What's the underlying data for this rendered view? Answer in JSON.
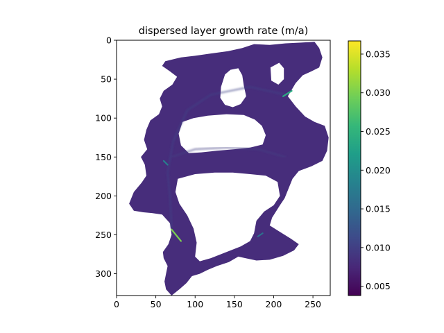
{
  "chart_data": {
    "type": "heatmap",
    "title": "dispersed layer growth rate (m/a)",
    "xlabel": "",
    "ylabel": "",
    "xlim": [
      0,
      272
    ],
    "ylim": [
      328,
      0
    ],
    "x_ticks": [
      0,
      50,
      100,
      150,
      200,
      250
    ],
    "y_ticks": [
      0,
      50,
      100,
      150,
      200,
      250,
      300
    ],
    "colormap": "viridis",
    "colorbar": {
      "min": 0.0038,
      "max": 0.0367,
      "ticks": [
        0.005,
        0.01,
        0.015,
        0.02,
        0.025,
        0.03,
        0.035
      ],
      "tick_labels": [
        "0.005",
        "0.010",
        "0.015",
        "0.020",
        "0.025",
        "0.030",
        "0.035"
      ]
    },
    "typical_value": 0.008,
    "nodata_color": "#ffffff",
    "domain_outline": [
      [
        175,
        5
      ],
      [
        195,
        6
      ],
      [
        215,
        4
      ],
      [
        235,
        3
      ],
      [
        252,
        2
      ],
      [
        258,
        10
      ],
      [
        262,
        22
      ],
      [
        258,
        35
      ],
      [
        248,
        40
      ],
      [
        237,
        45
      ],
      [
        228,
        55
      ],
      [
        218,
        72
      ],
      [
        228,
        85
      ],
      [
        240,
        98
      ],
      [
        252,
        105
      ],
      [
        265,
        110
      ],
      [
        270,
        125
      ],
      [
        268,
        142
      ],
      [
        262,
        155
      ],
      [
        248,
        162
      ],
      [
        232,
        168
      ],
      [
        224,
        178
      ],
      [
        220,
        188
      ],
      [
        214,
        203
      ],
      [
        208,
        212
      ],
      [
        203,
        220
      ],
      [
        198,
        228
      ],
      [
        195,
        238
      ],
      [
        206,
        245
      ],
      [
        222,
        255
      ],
      [
        232,
        262
      ],
      [
        226,
        270
      ],
      [
        212,
        277
      ],
      [
        195,
        282
      ],
      [
        178,
        283
      ],
      [
        164,
        280
      ],
      [
        155,
        278
      ],
      [
        143,
        285
      ],
      [
        128,
        290
      ],
      [
        116,
        295
      ],
      [
        106,
        300
      ],
      [
        96,
        303
      ],
      [
        89,
        312
      ],
      [
        80,
        320
      ],
      [
        70,
        328
      ],
      [
        63,
        320
      ],
      [
        61,
        310
      ],
      [
        63,
        300
      ],
      [
        65,
        290
      ],
      [
        60,
        280
      ],
      [
        59,
        272
      ],
      [
        66,
        262
      ],
      [
        70,
        250
      ],
      [
        68,
        235
      ],
      [
        58,
        224
      ],
      [
        45,
        222
      ],
      [
        34,
        221
      ],
      [
        22,
        219
      ],
      [
        16,
        210
      ],
      [
        22,
        195
      ],
      [
        32,
        183
      ],
      [
        38,
        174
      ],
      [
        36,
        160
      ],
      [
        31,
        150
      ],
      [
        39,
        140
      ],
      [
        35,
        128
      ],
      [
        38,
        115
      ],
      [
        43,
        103
      ],
      [
        54,
        95
      ],
      [
        58,
        85
      ],
      [
        55,
        75
      ],
      [
        60,
        65
      ],
      [
        71,
        57
      ],
      [
        77,
        47
      ],
      [
        68,
        40
      ],
      [
        58,
        33
      ],
      [
        62,
        27
      ],
      [
        82,
        22
      ],
      [
        100,
        20
      ],
      [
        120,
        17
      ],
      [
        142,
        14
      ],
      [
        160,
        10
      ]
    ],
    "holes": [
      {
        "type": "main-hole",
        "points": [
          [
            84,
            105
          ],
          [
            98,
            100
          ],
          [
            116,
            97
          ],
          [
            140,
            95
          ],
          [
            162,
            96
          ],
          [
            176,
            102
          ],
          [
            185,
            110
          ],
          [
            190,
            122
          ],
          [
            186,
            134
          ],
          [
            170,
            138
          ],
          [
            150,
            140
          ],
          [
            128,
            142
          ],
          [
            108,
            144
          ],
          [
            92,
            145
          ],
          [
            82,
            135
          ],
          [
            79,
            120
          ]
        ]
      },
      {
        "type": "lower-hole",
        "points": [
          [
            78,
            178
          ],
          [
            100,
            172
          ],
          [
            125,
            170
          ],
          [
            148,
            170
          ],
          [
            170,
            172
          ],
          [
            190,
            174
          ],
          [
            205,
            182
          ],
          [
            208,
            200
          ],
          [
            200,
            212
          ],
          [
            188,
            220
          ],
          [
            178,
            232
          ],
          [
            175,
            248
          ],
          [
            170,
            258
          ],
          [
            158,
            265
          ],
          [
            140,
            272
          ],
          [
            120,
            280
          ],
          [
            106,
            284
          ],
          [
            100,
            278
          ],
          [
            102,
            260
          ],
          [
            98,
            242
          ],
          [
            90,
            225
          ],
          [
            80,
            210
          ],
          [
            75,
            195
          ]
        ]
      },
      {
        "type": "top-bay",
        "points": [
          [
            138,
            44
          ],
          [
            145,
            38
          ],
          [
            155,
            36
          ],
          [
            160,
            45
          ],
          [
            162,
            58
          ],
          [
            165,
            72
          ],
          [
            158,
            82
          ],
          [
            148,
            86
          ],
          [
            138,
            83
          ],
          [
            132,
            74
          ],
          [
            133,
            60
          ]
        ]
      },
      {
        "type": "right-notch",
        "points": [
          [
            196,
            35
          ],
          [
            207,
            29
          ],
          [
            213,
            36
          ],
          [
            213,
            50
          ],
          [
            206,
            57
          ],
          [
            197,
            52
          ]
        ]
      }
    ],
    "streaks": [
      {
        "from": [
          70,
          243
        ],
        "to": [
          82,
          258
        ],
        "value": 0.03
      },
      {
        "from": [
          212,
          72
        ],
        "to": [
          223,
          65
        ],
        "value": 0.024
      },
      {
        "from": [
          60,
          155
        ],
        "to": [
          65,
          160
        ],
        "value": 0.018
      },
      {
        "from": [
          180,
          252
        ],
        "to": [
          186,
          248
        ],
        "value": 0.016
      }
    ],
    "bands": [
      {
        "path": [
          [
            70,
            150
          ],
          [
            100,
            140
          ],
          [
            140,
            138
          ],
          [
            180,
            140
          ],
          [
            215,
            150
          ]
        ],
        "value": 0.01
      },
      {
        "path": [
          [
            70,
            240
          ],
          [
            68,
            200
          ],
          [
            65,
            170
          ],
          [
            72,
            130
          ],
          [
            90,
            90
          ],
          [
            120,
            70
          ],
          [
            170,
            60
          ],
          [
            215,
            70
          ]
        ],
        "value": 0.0105
      }
    ]
  }
}
